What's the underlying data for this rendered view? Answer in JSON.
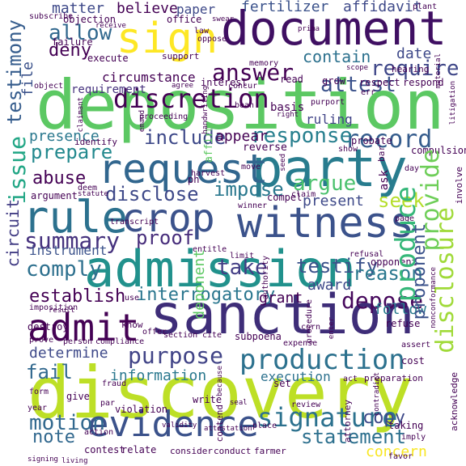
{
  "words": [
    {
      "id": "deposition",
      "text": "deposition",
      "color": "#5cc863"
    },
    {
      "id": "discovery",
      "text": "discovery",
      "color": "#bddf26"
    },
    {
      "id": "document",
      "text": "document",
      "color": "#3f0f62"
    },
    {
      "id": "sanction",
      "text": "sanction",
      "color": "#3e2d78"
    },
    {
      "id": "admission",
      "text": "admission",
      "color": "#21918c"
    },
    {
      "id": "witness",
      "text": "witness",
      "color": "#3b528b"
    },
    {
      "id": "party",
      "text": "party",
      "color": "#287c8e"
    },
    {
      "id": "request",
      "text": "request",
      "color": "#31668e"
    },
    {
      "id": "evidence",
      "text": "evidence",
      "color": "#3b528b"
    },
    {
      "id": "sign",
      "text": "sign",
      "color": "#fde725"
    },
    {
      "id": "rule",
      "text": "rule",
      "color": "#2c718e"
    },
    {
      "id": "crop",
      "text": "crop",
      "color": "#3b528b"
    },
    {
      "id": "admit",
      "text": "admit",
      "color": "#440154"
    },
    {
      "id": "production",
      "text": "production",
      "color": "#2c718e"
    },
    {
      "id": "signature",
      "text": "signature",
      "color": "#2c718e"
    },
    {
      "id": "discretion",
      "text": "discretion",
      "color": "#440154"
    },
    {
      "id": "produce",
      "text": "produce",
      "color": "#35b779"
    },
    {
      "id": "issue",
      "text": "issue",
      "color": "#21a685"
    },
    {
      "id": "summary",
      "text": "summary",
      "color": "#46327e"
    },
    {
      "id": "purpose",
      "text": "purpose",
      "color": "#414487"
    },
    {
      "id": "answer",
      "text": "answer",
      "color": "#440154"
    },
    {
      "id": "interrogatory",
      "text": "interrogatory",
      "color": "#2a768e"
    },
    {
      "id": "record",
      "text": "record",
      "color": "#365d8d"
    },
    {
      "id": "testify",
      "text": "testify",
      "color": "#3b528b"
    },
    {
      "id": "provide",
      "text": "provide",
      "color": "#6ece58"
    },
    {
      "id": "disclosure",
      "text": "disclosure",
      "color": "#a0da39"
    },
    {
      "id": "testimony",
      "text": "testimony",
      "color": "#365d8d"
    },
    {
      "id": "circuit",
      "text": "circuit",
      "color": "#433e85"
    },
    {
      "id": "motion",
      "text": "motion",
      "color": "#31688e"
    },
    {
      "id": "statement",
      "text": "statement",
      "color": "#2d708e"
    },
    {
      "id": "allow",
      "text": "allow",
      "color": "#31688e"
    },
    {
      "id": "require",
      "text": "require",
      "color": "#3f4788"
    },
    {
      "id": "response",
      "text": "response",
      "color": "#277f8e"
    },
    {
      "id": "argue",
      "text": "argue",
      "color": "#4ac16d"
    },
    {
      "id": "attest",
      "text": "attest",
      "color": "#3b528b"
    },
    {
      "id": "depose",
      "text": "depose",
      "color": "#46085c"
    },
    {
      "id": "reason",
      "text": "reason",
      "color": "#2a788e"
    },
    {
      "id": "comply",
      "text": "comply",
      "color": "#2d708e"
    },
    {
      "id": "prepare",
      "text": "prepare",
      "color": "#23898e"
    },
    {
      "id": "abuse",
      "text": "abuse",
      "color": "#440154"
    },
    {
      "id": "disclose",
      "text": "disclose",
      "color": "#3e4989"
    },
    {
      "id": "impose",
      "text": "impose",
      "color": "#2a788e"
    },
    {
      "id": "establish",
      "text": "establish",
      "color": "#440154"
    },
    {
      "id": "proof",
      "text": "proof",
      "color": "#472d7b"
    },
    {
      "id": "take",
      "text": "take",
      "color": "#433e85"
    },
    {
      "id": "proponent",
      "text": "proponent",
      "color": "#3b528b"
    },
    {
      "id": "seek",
      "text": "seek",
      "color": "#b5de2b"
    },
    {
      "id": "fail",
      "text": "fail",
      "color": "#31688e"
    },
    {
      "id": "include",
      "text": "include",
      "color": "#3e4989"
    },
    {
      "id": "determine",
      "text": "determine",
      "color": "#3e4989"
    },
    {
      "id": "information",
      "text": "information",
      "color": "#2a788e"
    },
    {
      "id": "note",
      "text": "note",
      "color": "#31688e"
    },
    {
      "id": "copy",
      "text": "copy",
      "color": "#3e4989"
    },
    {
      "id": "concern",
      "text": "concern",
      "color": "#f8e621"
    },
    {
      "id": "fertilizer",
      "text": "fertilizer",
      "color": "#3b528b"
    },
    {
      "id": "affidavit",
      "text": "affidavit",
      "color": "#3e4989"
    },
    {
      "id": "matter",
      "text": "matter",
      "color": "#3e4989"
    },
    {
      "id": "believe",
      "text": "believe",
      "color": "#440154"
    },
    {
      "id": "paper",
      "text": "paper",
      "color": "#3e4989"
    },
    {
      "id": "deny",
      "text": "deny",
      "color": "#440154"
    },
    {
      "id": "file",
      "text": "file",
      "color": "#3b528b"
    },
    {
      "id": "contain",
      "text": "contain",
      "color": "#2c718e"
    },
    {
      "id": "date",
      "text": "date",
      "color": "#3e4989"
    },
    {
      "id": "presence",
      "text": "presence",
      "color": "#2a788e"
    },
    {
      "id": "instrument",
      "text": "instrument",
      "color": "#3b528b"
    },
    {
      "id": "deponent",
      "text": "deponent",
      "color": "#5cc863"
    },
    {
      "id": "follow",
      "text": "follow",
      "color": "#287c8e"
    },
    {
      "id": "award",
      "text": "award",
      "color": "#3e4989"
    },
    {
      "id": "grant",
      "text": "grant",
      "color": "#440154"
    },
    {
      "id": "execution",
      "text": "execution",
      "color": "#2c718e"
    },
    {
      "id": "present",
      "text": "present",
      "color": "#3e4989"
    },
    {
      "id": "appear",
      "text": "appear",
      "color": "#440154"
    },
    {
      "id": "ruling",
      "text": "ruling",
      "color": "#414487"
    },
    {
      "id": "basis",
      "text": "basis",
      "color": "#440154"
    },
    {
      "id": "circumstance",
      "text": "circumstance",
      "color": "#440154"
    },
    {
      "id": "requirement",
      "text": "requirement",
      "color": "#46327e"
    },
    {
      "id": "execute",
      "text": "execute",
      "color": "#440154"
    },
    {
      "id": "object",
      "text": "object",
      "color": "#440154"
    },
    {
      "id": "argument",
      "text": "argument",
      "color": "#440154"
    },
    {
      "id": "identify",
      "text": "identify",
      "color": "#440154"
    },
    {
      "id": "reverse",
      "text": "reverse",
      "color": "#440154"
    },
    {
      "id": "affirm",
      "text": "affirm",
      "color": "#5ec962"
    },
    {
      "id": "compel",
      "text": "compel",
      "color": "#440154"
    },
    {
      "id": "winner",
      "text": "winner",
      "color": "#440154"
    },
    {
      "id": "limit",
      "text": "limit",
      "color": "#440154"
    },
    {
      "id": "ask",
      "text": "ask",
      "color": "#440154"
    },
    {
      "id": "bar",
      "text": "bar",
      "color": "#440154"
    },
    {
      "id": "show",
      "text": "show",
      "color": "#440154"
    },
    {
      "id": "probate",
      "text": "probate",
      "color": "#440154"
    },
    {
      "id": "compulsion",
      "text": "compulsion",
      "color": "#440154"
    },
    {
      "id": "read",
      "text": "read",
      "color": "#440154"
    },
    {
      "id": "grow",
      "text": "grow",
      "color": "#440154"
    },
    {
      "id": "respect",
      "text": "respect",
      "color": "#440154"
    },
    {
      "id": "respond",
      "text": "respond",
      "color": "#440154"
    },
    {
      "id": "interest",
      "text": "interest",
      "color": "#440154"
    },
    {
      "id": "support",
      "text": "support",
      "color": "#440154"
    },
    {
      "id": "office",
      "text": "office",
      "color": "#440154"
    },
    {
      "id": "failure",
      "text": "failure",
      "color": "#440154"
    },
    {
      "id": "objection",
      "text": "objection",
      "color": "#440154"
    },
    {
      "id": "hearing",
      "text": "hearing",
      "color": "#440154"
    },
    {
      "id": "plant",
      "text": "plant",
      "color": "#440154"
    },
    {
      "id": "law",
      "text": "law",
      "color": "#440154"
    },
    {
      "id": "oppose",
      "text": "oppose",
      "color": "#440154"
    },
    {
      "id": "memory",
      "text": "memory",
      "color": "#440154"
    },
    {
      "id": "purport",
      "text": "purport",
      "color": "#440154"
    },
    {
      "id": "claim",
      "text": "claim",
      "color": "#440154"
    },
    {
      "id": "move",
      "text": "move",
      "color": "#440154"
    },
    {
      "id": "day",
      "text": "day",
      "color": "#440154"
    },
    {
      "id": "involve",
      "text": "involve",
      "color": "#440154"
    },
    {
      "id": "page",
      "text": "page",
      "color": "#440154"
    },
    {
      "id": "opponent",
      "text": "opponent",
      "color": "#440154"
    },
    {
      "id": "refusal",
      "text": "refusal",
      "color": "#440154"
    },
    {
      "id": "authority",
      "text": "authority",
      "color": "#440154"
    },
    {
      "id": "procedure",
      "text": "procedure",
      "color": "#440154"
    },
    {
      "id": "subpoena",
      "text": "subpoena",
      "color": "#440154"
    },
    {
      "id": "refuse",
      "text": "refuse",
      "color": "#440154"
    },
    {
      "id": "section",
      "text": "section",
      "color": "#440154"
    },
    {
      "id": "offer",
      "text": "offer",
      "color": "#440154"
    },
    {
      "id": "entitle",
      "text": "entitle",
      "color": "#440154"
    },
    {
      "id": "know",
      "text": "know",
      "color": "#440154"
    },
    {
      "id": "destroy",
      "text": "destroy",
      "color": "#440154"
    },
    {
      "id": "imposition",
      "text": "imposition",
      "color": "#440154"
    },
    {
      "id": "prove",
      "text": "prove",
      "color": "#440154"
    },
    {
      "id": "person",
      "text": "person",
      "color": "#440154"
    },
    {
      "id": "compliance",
      "text": "compliance",
      "color": "#440154"
    },
    {
      "id": "cite",
      "text": "cite",
      "color": "#440154"
    },
    {
      "id": "expense",
      "text": "expense",
      "color": "#440154"
    },
    {
      "id": "assert",
      "text": "assert",
      "color": "#440154"
    },
    {
      "id": "cost",
      "text": "cost",
      "color": "#440154"
    },
    {
      "id": "act",
      "text": "act",
      "color": "#440154"
    },
    {
      "id": "preparation",
      "text": "preparation",
      "color": "#440154"
    },
    {
      "id": "taking",
      "text": "taking",
      "color": "#440154"
    },
    {
      "id": "attorney",
      "text": "attorney",
      "color": "#440154"
    },
    {
      "id": "set",
      "text": "set",
      "color": "#440154"
    },
    {
      "id": "review",
      "text": "review",
      "color": "#440154"
    },
    {
      "id": "place",
      "text": "place",
      "color": "#440154"
    },
    {
      "id": "write",
      "text": "write",
      "color": "#440154"
    },
    {
      "id": "contend",
      "text": "contend",
      "color": "#440154"
    },
    {
      "id": "violation",
      "text": "violation",
      "color": "#440154"
    },
    {
      "id": "action",
      "text": "action",
      "color": "#440154"
    },
    {
      "id": "give",
      "text": "give",
      "color": "#440154"
    },
    {
      "id": "form",
      "text": "form",
      "color": "#440154"
    },
    {
      "id": "year",
      "text": "year",
      "color": "#440154"
    },
    {
      "id": "fraud",
      "text": "fraud",
      "color": "#440154"
    },
    {
      "id": "contest",
      "text": "contest",
      "color": "#440154"
    },
    {
      "id": "relate",
      "text": "relate",
      "color": "#440154"
    },
    {
      "id": "consider",
      "text": "consider",
      "color": "#440154"
    },
    {
      "id": "conduct",
      "text": "conduct",
      "color": "#440154"
    },
    {
      "id": "farmer",
      "text": "farmer",
      "color": "#440154"
    },
    {
      "id": "acknowledge",
      "text": "acknowledge",
      "color": "#440154"
    },
    {
      "id": "favor",
      "text": "favor",
      "color": "#440154"
    },
    {
      "id": "imply",
      "text": "imply",
      "color": "#440154"
    },
    {
      "id": "proceeding",
      "text": "proceeding",
      "color": "#440154"
    },
    {
      "id": "transcript",
      "text": "transcript",
      "color": "#440154"
    },
    {
      "id": "deem",
      "text": "deem",
      "color": "#440154"
    },
    {
      "id": "harvest",
      "text": "harvest",
      "color": "#440154"
    },
    {
      "id": "use",
      "text": "use",
      "color": "#440154"
    },
    {
      "id": "attach",
      "text": "attach",
      "color": "#440154"
    },
    {
      "id": "corn",
      "text": "corn",
      "color": "#440154"
    },
    {
      "id": "subscribe",
      "text": "subscribe",
      "color": "#440154"
    },
    {
      "id": "receive",
      "text": "receive",
      "color": "#440154"
    },
    {
      "id": "swear",
      "text": "swear",
      "color": "#440154"
    },
    {
      "id": "prima",
      "text": "prima",
      "color": "#440154"
    },
    {
      "id": "material",
      "text": "material",
      "color": "#440154"
    },
    {
      "id": "scope",
      "text": "scope",
      "color": "#440154"
    },
    {
      "id": "err",
      "text": "err",
      "color": "#440154"
    },
    {
      "id": "concur",
      "text": "concur",
      "color": "#440154"
    },
    {
      "id": "agree",
      "text": "agree",
      "color": "#440154"
    },
    {
      "id": "handwriting",
      "text": "handwriting",
      "color": "#440154"
    },
    {
      "id": "bean",
      "text": "bean",
      "color": "#440154"
    },
    {
      "id": "emand",
      "text": "emand",
      "color": "#440154"
    },
    {
      "id": "litigation",
      "text": "litigation",
      "color": "#440154"
    },
    {
      "id": "right",
      "text": "right",
      "color": "#440154"
    },
    {
      "id": "validity",
      "text": "validity",
      "color": "#440154"
    },
    {
      "id": "result",
      "text": "result",
      "color": "#440154"
    },
    {
      "id": "signing",
      "text": "signing",
      "color": "#440154"
    },
    {
      "id": "because",
      "text": "because",
      "color": "#440154"
    },
    {
      "id": "seal",
      "text": "seal",
      "color": "#440154"
    },
    {
      "id": "enter",
      "text": "enter",
      "color": "#440154"
    },
    {
      "id": "par",
      "text": "par",
      "color": "#440154"
    },
    {
      "id": "claimant",
      "text": "claimant",
      "color": "#440154"
    },
    {
      "id": "seed",
      "text": "seed",
      "color": "#440154"
    },
    {
      "id": "ph",
      "text": "ph",
      "color": "#440154"
    },
    {
      "id": "attestation",
      "text": "attestation",
      "color": "#440154"
    },
    {
      "id": "contradict",
      "text": "contradict",
      "color": "#440154"
    },
    {
      "id": "living",
      "text": "living",
      "color": "#440154"
    },
    {
      "id": "statute",
      "text": "statute",
      "color": "#440154"
    },
    {
      "id": "nonconformance",
      "text": "nonconformance",
      "color": "#440154"
    }
  ]
}
